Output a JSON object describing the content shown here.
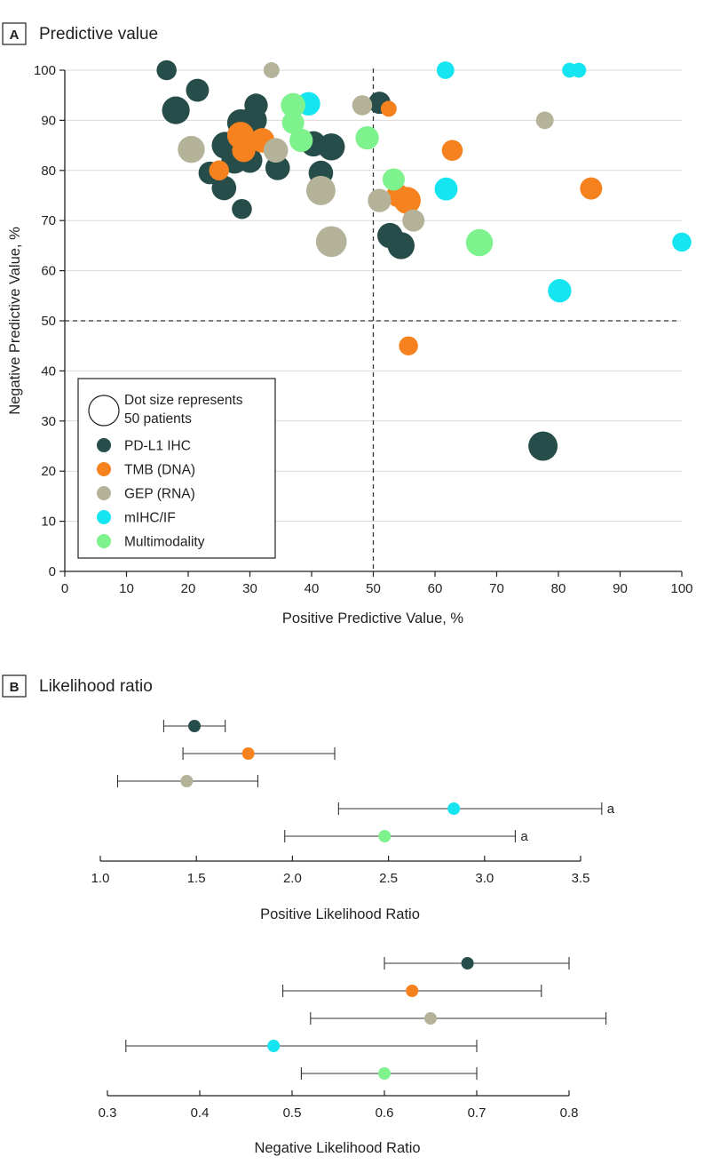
{
  "colors": {
    "PD-L1 IHC": "#264d4a",
    "TMB (DNA)": "#f5821f",
    "GEP (RNA)": "#b5b29a",
    "mIHC/IF": "#14e5f0",
    "Multimodality": "#7ef28d",
    "axis": "#231f20",
    "grid": "#d9d9d9"
  },
  "chart_data": [
    {
      "type": "scatter",
      "panel_letter": "A",
      "title": "Predictive value",
      "xlabel": "Positive Predictive Value, %",
      "ylabel": "Negative Predictive Value, %",
      "xlim": [
        0,
        100
      ],
      "ylim": [
        0,
        100
      ],
      "xticks": [
        "0",
        "10",
        "20",
        "30",
        "40",
        "50",
        "60",
        "70",
        "80",
        "90",
        "100"
      ],
      "yticks": [
        "0",
        "10",
        "20",
        "30",
        "40",
        "50",
        "60",
        "70",
        "80",
        "90",
        "100"
      ],
      "reference_lines": {
        "x": 50,
        "y": 50,
        "style": "dashed"
      },
      "legend": {
        "placement": "bottom-left",
        "size_note_line1": "Dot size represents",
        "size_note_line2": "50 patients",
        "size_note_patients": 50,
        "entries": [
          "PD-L1 IHC",
          "TMB (DNA)",
          "GEP (RNA)",
          "mIHC/IF",
          "Multimodality"
        ]
      },
      "series": [
        {
          "name": "PD-L1 IHC",
          "points": [
            {
              "x": 16.5,
              "y": 100,
              "n": 22
            },
            {
              "x": 21.5,
              "y": 96,
              "n": 29
            },
            {
              "x": 18,
              "y": 92,
              "n": 42
            },
            {
              "x": 31,
              "y": 93,
              "n": 30
            },
            {
              "x": 28.5,
              "y": 89.5,
              "n": 40
            },
            {
              "x": 30.5,
              "y": 90,
              "n": 42
            },
            {
              "x": 26,
              "y": 85,
              "n": 40
            },
            {
              "x": 23.5,
              "y": 79.5,
              "n": 28
            },
            {
              "x": 27.5,
              "y": 82,
              "n": 38
            },
            {
              "x": 30,
              "y": 82,
              "n": 34
            },
            {
              "x": 25.8,
              "y": 76.5,
              "n": 33
            },
            {
              "x": 28.7,
              "y": 72.3,
              "n": 22
            },
            {
              "x": 34.5,
              "y": 80.5,
              "n": 33
            },
            {
              "x": 40.3,
              "y": 85.3,
              "n": 35
            },
            {
              "x": 43.2,
              "y": 84.7,
              "n": 40
            },
            {
              "x": 41.5,
              "y": 79.5,
              "n": 33
            },
            {
              "x": 51,
              "y": 93.5,
              "n": 27
            },
            {
              "x": 52.7,
              "y": 67,
              "n": 35
            },
            {
              "x": 54.5,
              "y": 65,
              "n": 40
            },
            {
              "x": 77.5,
              "y": 25,
              "n": 47
            }
          ]
        },
        {
          "name": "TMB (DNA)",
          "points": [
            {
              "x": 52.5,
              "y": 92.3,
              "n": 14
            },
            {
              "x": 28.5,
              "y": 87,
              "n": 40
            },
            {
              "x": 32,
              "y": 86,
              "n": 33
            },
            {
              "x": 29,
              "y": 84,
              "n": 30
            },
            {
              "x": 25,
              "y": 80,
              "n": 22
            },
            {
              "x": 62.8,
              "y": 84,
              "n": 24
            },
            {
              "x": 54,
              "y": 75,
              "n": 30
            },
            {
              "x": 55.5,
              "y": 74,
              "n": 40
            },
            {
              "x": 85.3,
              "y": 76.4,
              "n": 27
            },
            {
              "x": 55.7,
              "y": 45,
              "n": 20
            }
          ]
        },
        {
          "name": "GEP (RNA)",
          "points": [
            {
              "x": 33.5,
              "y": 100,
              "n": 14
            },
            {
              "x": 48.2,
              "y": 93,
              "n": 22
            },
            {
              "x": 77.8,
              "y": 90,
              "n": 17
            },
            {
              "x": 20.5,
              "y": 84.2,
              "n": 40
            },
            {
              "x": 34.2,
              "y": 84,
              "n": 33
            },
            {
              "x": 41.5,
              "y": 76,
              "n": 47
            },
            {
              "x": 51,
              "y": 74,
              "n": 30
            },
            {
              "x": 56.5,
              "y": 70,
              "n": 27
            },
            {
              "x": 43.2,
              "y": 65.8,
              "n": 52
            }
          ]
        },
        {
          "name": "mIHC/IF",
          "points": [
            {
              "x": 61.7,
              "y": 100,
              "n": 17
            },
            {
              "x": 81.8,
              "y": 100,
              "n": 12
            },
            {
              "x": 83.3,
              "y": 100,
              "n": 12
            },
            {
              "x": 39.5,
              "y": 93.3,
              "n": 30
            },
            {
              "x": 61.8,
              "y": 76.3,
              "n": 29
            },
            {
              "x": 80.2,
              "y": 56,
              "n": 30
            },
            {
              "x": 100,
              "y": 65.7,
              "n": 20
            }
          ]
        },
        {
          "name": "Multimodality",
          "points": [
            {
              "x": 37,
              "y": 93,
              "n": 33
            },
            {
              "x": 37,
              "y": 89.5,
              "n": 27
            },
            {
              "x": 38.3,
              "y": 86,
              "n": 30
            },
            {
              "x": 49,
              "y": 86.5,
              "n": 30
            },
            {
              "x": 53.3,
              "y": 78.2,
              "n": 27
            },
            {
              "x": 67.2,
              "y": 65.6,
              "n": 40
            }
          ]
        }
      ]
    },
    {
      "type": "forest",
      "panel_letter": "B",
      "title": "Likelihood ratio",
      "xlabel": "Positive Likelihood Ratio",
      "xlim": [
        1.0,
        3.5
      ],
      "xticks": [
        "1.0",
        "1.5",
        "2.0",
        "2.5",
        "3.0",
        "3.5"
      ],
      "rows": [
        {
          "name": "PD-L1 IHC",
          "estimate": 1.49,
          "lower": 1.33,
          "upper": 1.65,
          "annotation": ""
        },
        {
          "name": "TMB (DNA)",
          "estimate": 1.77,
          "lower": 1.43,
          "upper": 2.22,
          "annotation": ""
        },
        {
          "name": "GEP (RNA)",
          "estimate": 1.45,
          "lower": 1.09,
          "upper": 1.82,
          "annotation": ""
        },
        {
          "name": "mIHC/IF",
          "estimate": 2.84,
          "lower": 2.24,
          "upper": 3.61,
          "annotation": "a"
        },
        {
          "name": "Multimodality",
          "estimate": 2.48,
          "lower": 1.96,
          "upper": 3.16,
          "annotation": "a"
        }
      ]
    },
    {
      "type": "forest",
      "xlabel": "Negative Likelihood Ratio",
      "xlim": [
        0.3,
        0.8
      ],
      "xticks": [
        "0.3",
        "0.4",
        "0.5",
        "0.6",
        "0.7",
        "0.8"
      ],
      "rows": [
        {
          "name": "PD-L1 IHC",
          "estimate": 0.69,
          "lower": 0.6,
          "upper": 0.8,
          "annotation": ""
        },
        {
          "name": "TMB (DNA)",
          "estimate": 0.63,
          "lower": 0.49,
          "upper": 0.77,
          "annotation": ""
        },
        {
          "name": "GEP (RNA)",
          "estimate": 0.65,
          "lower": 0.52,
          "upper": 0.84,
          "annotation": ""
        },
        {
          "name": "mIHC/IF",
          "estimate": 0.48,
          "lower": 0.32,
          "upper": 0.7,
          "annotation": ""
        },
        {
          "name": "Multimodality",
          "estimate": 0.6,
          "lower": 0.51,
          "upper": 0.7,
          "annotation": ""
        }
      ]
    }
  ]
}
